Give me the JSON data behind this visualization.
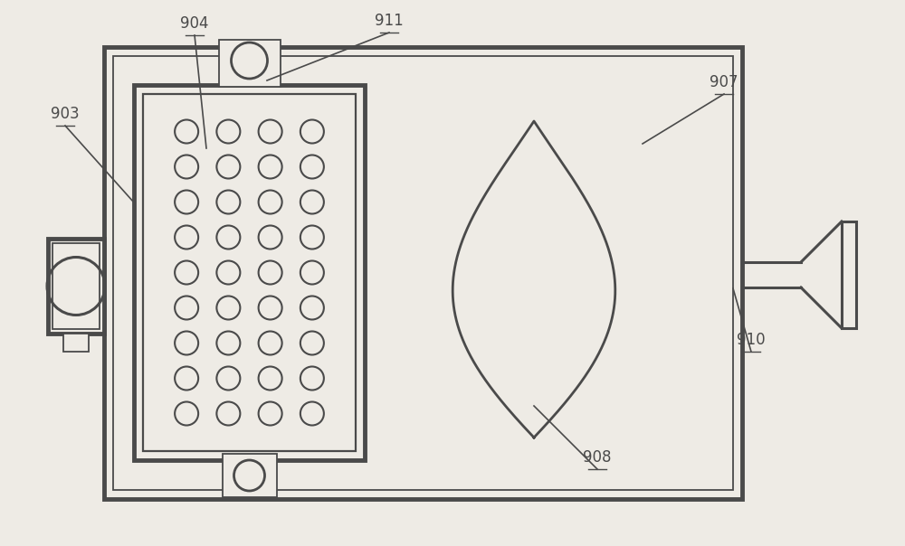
{
  "bg_color": "#eeebe5",
  "line_color": "#4a4a4a",
  "lw_main": 2.2,
  "lw_thick": 3.5,
  "lw_thin": 1.3,
  "figsize": [
    10.0,
    6.04
  ],
  "dpi": 100
}
